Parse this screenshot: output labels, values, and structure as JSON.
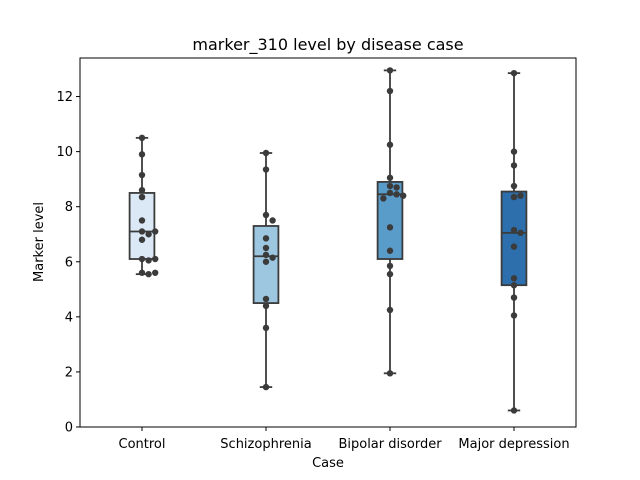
{
  "chart_data": {
    "type": "box",
    "title": "marker_310 level by disease case",
    "xlabel": "Case",
    "ylabel": "Marker level",
    "ylim": [
      0,
      13.4
    ],
    "yticks": [
      0,
      2,
      4,
      6,
      8,
      10,
      12
    ],
    "categories": [
      "Control",
      "Schizophrenia",
      "Bipolar disorder",
      "Major depression"
    ],
    "colors": [
      "#dbe9f6",
      "#9dc7e0",
      "#5a9cc9",
      "#2d6fad"
    ],
    "boxes": [
      {
        "whislo": 5.55,
        "q1": 6.1,
        "med": 7.1,
        "q3": 8.5,
        "whishi": 10.5
      },
      {
        "whislo": 1.45,
        "q1": 4.5,
        "med": 6.2,
        "q3": 7.3,
        "whishi": 9.95
      },
      {
        "whislo": 1.95,
        "q1": 6.1,
        "med": 8.45,
        "q3": 8.9,
        "whishi": 12.95
      },
      {
        "whislo": 0.6,
        "q1": 5.15,
        "med": 7.05,
        "q3": 8.55,
        "whishi": 12.85
      }
    ],
    "points": [
      [
        10.5,
        9.9,
        9.15,
        8.6,
        8.35,
        7.5,
        7.1,
        7.0,
        7.1,
        6.8,
        6.1,
        6.05,
        6.1,
        5.6,
        5.55,
        5.6
      ],
      [
        9.95,
        9.35,
        7.7,
        7.5,
        6.85,
        6.5,
        6.25,
        6.15,
        6.0,
        4.65,
        4.4,
        3.6,
        1.45
      ],
      [
        12.95,
        12.2,
        10.25,
        9.05,
        8.75,
        8.7,
        8.5,
        8.45,
        8.3,
        8.4,
        7.25,
        6.4,
        5.85,
        5.55,
        4.25,
        1.95
      ],
      [
        12.85,
        10.0,
        9.5,
        8.75,
        8.35,
        8.4,
        7.15,
        7.05,
        6.55,
        5.4,
        5.15,
        4.7,
        4.05,
        0.6
      ]
    ]
  }
}
